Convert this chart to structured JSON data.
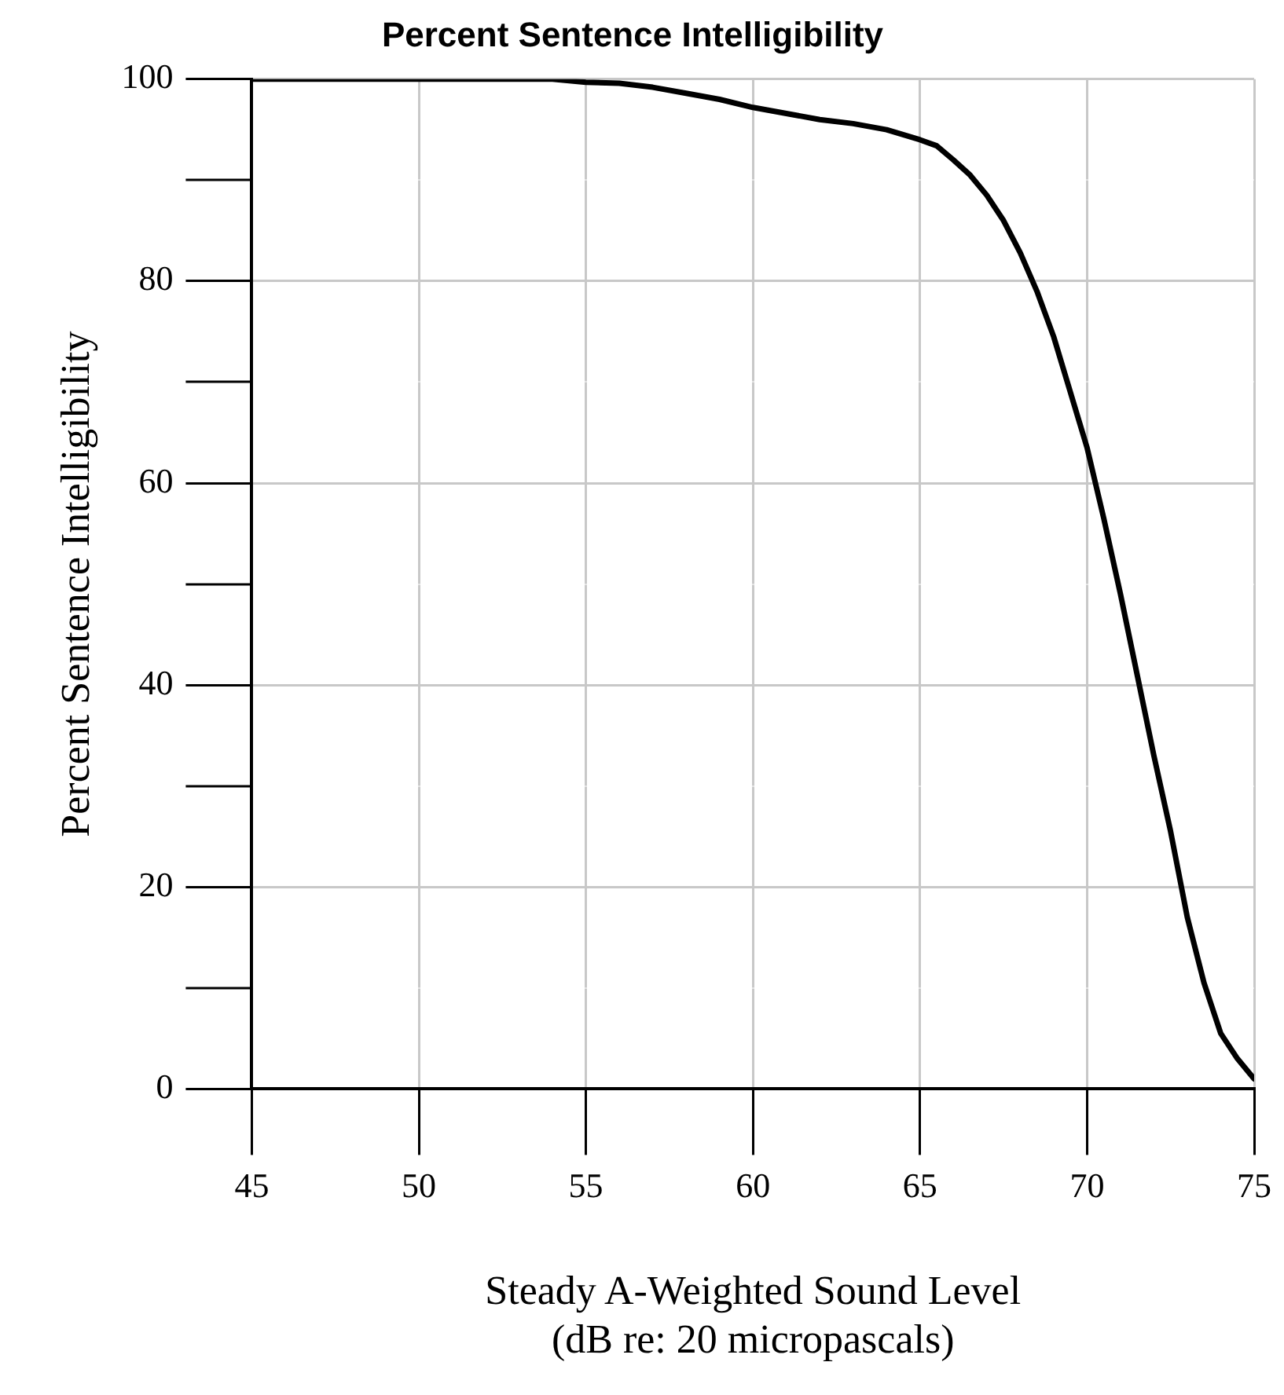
{
  "chart_data": {
    "type": "line",
    "title": "Percent Sentence Intelligibility",
    "xlabel": "Steady A-Weighted Sound Level\n(dB re: 20 micropascals)",
    "ylabel": "Percent Sentence Intelligibility",
    "xlim": [
      45,
      75
    ],
    "ylim": [
      0,
      100
    ],
    "xticks": [
      45,
      50,
      55,
      60,
      65,
      70,
      75
    ],
    "yticks": [
      0,
      {
        "value": 10,
        "label": null
      },
      20,
      {
        "value": 30,
        "label": null
      },
      40,
      {
        "value": 50,
        "label": null
      },
      60,
      {
        "value": 70,
        "label": null
      },
      80,
      {
        "value": 90,
        "label": null
      },
      100
    ],
    "grid": true,
    "marker": "none",
    "line_style": "solid",
    "series": [
      {
        "color": "#000000",
        "x": [
          45,
          54,
          55,
          56,
          57,
          58,
          59,
          60,
          61,
          62,
          63,
          64,
          65,
          65.5,
          66,
          66.5,
          67,
          67.5,
          68,
          68.5,
          69,
          69.5,
          70,
          70.5,
          71,
          71.5,
          72,
          72.5,
          73,
          73.5,
          74,
          74.5,
          75
        ],
        "values": [
          100,
          100,
          99.7,
          99.6,
          99.2,
          98.6,
          98,
          97.2,
          96.6,
          96,
          95.6,
          95,
          94,
          93.4,
          92,
          90.5,
          88.5,
          86,
          82.8,
          79,
          74.5,
          69,
          63.5,
          56.5,
          49,
          41,
          33,
          25.5,
          17,
          10.5,
          5.5,
          3,
          1
        ]
      }
    ]
  }
}
